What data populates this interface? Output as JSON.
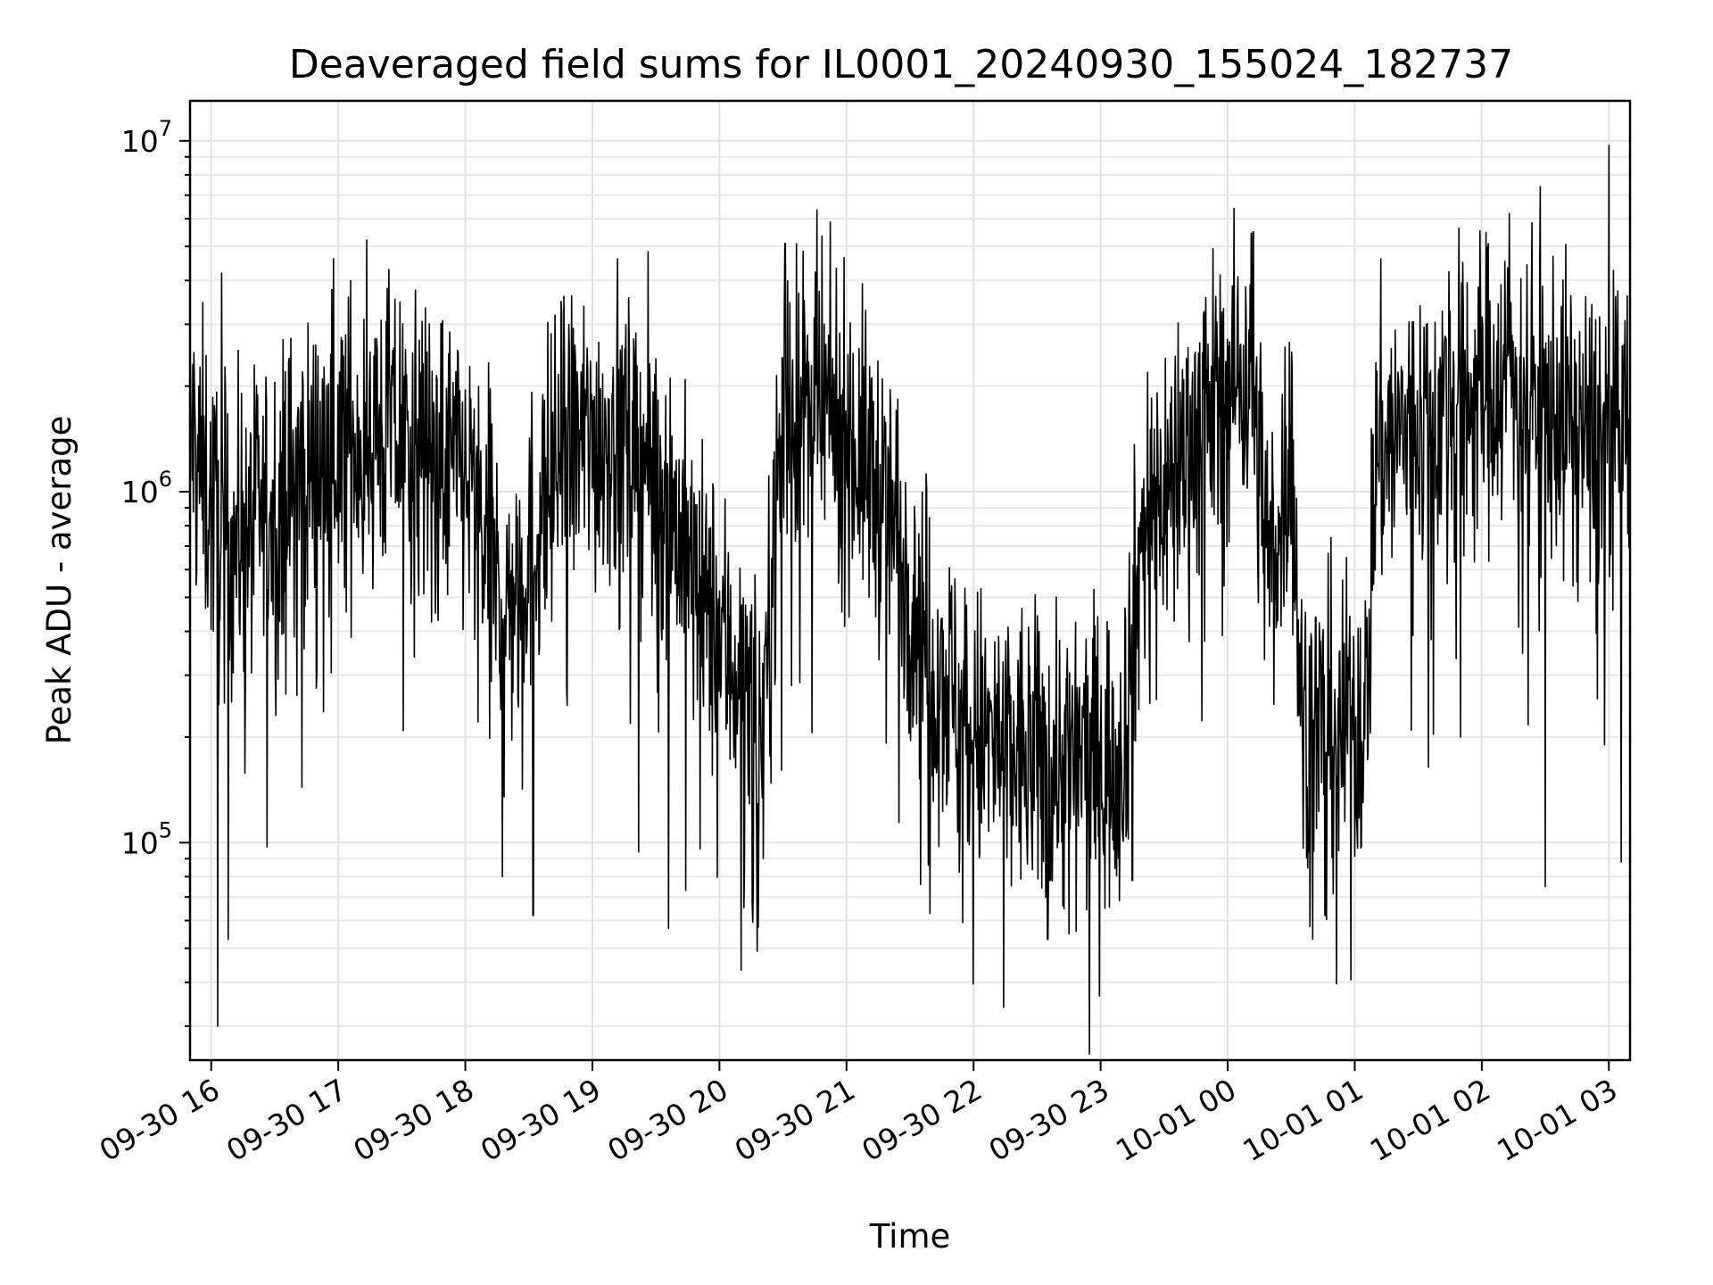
{
  "chart_data": {
    "type": "line",
    "title": "Deaveraged field sums for IL0001_20240930_155024_182737",
    "xlabel": "Time",
    "ylabel": "Peak ADU - average",
    "yscale": "log",
    "ylim": [
      24000,
      13000000
    ],
    "xlim": [
      "2024-09-30 15:50",
      "2024-10-01 03:10"
    ],
    "y_ticks": [
      {
        "value": 100000,
        "base": "10",
        "exp": "5"
      },
      {
        "value": 1000000,
        "base": "10",
        "exp": "6"
      },
      {
        "value": 10000000,
        "base": "10",
        "exp": "7"
      }
    ],
    "x_ticks": [
      {
        "t": "2024-09-30 16:00",
        "label": "09-30 16"
      },
      {
        "t": "2024-09-30 17:00",
        "label": "09-30 17"
      },
      {
        "t": "2024-09-30 18:00",
        "label": "09-30 18"
      },
      {
        "t": "2024-09-30 19:00",
        "label": "09-30 19"
      },
      {
        "t": "2024-09-30 20:00",
        "label": "09-30 20"
      },
      {
        "t": "2024-09-30 21:00",
        "label": "09-30 21"
      },
      {
        "t": "2024-09-30 22:00",
        "label": "09-30 22"
      },
      {
        "t": "2024-09-30 23:00",
        "label": "09-30 23"
      },
      {
        "t": "2024-10-01 00:00",
        "label": "10-01 00"
      },
      {
        "t": "2024-10-01 01:00",
        "label": "10-01 01"
      },
      {
        "t": "2024-10-01 02:00",
        "label": "10-01 02"
      },
      {
        "t": "2024-10-01 03:00",
        "label": "10-01 03"
      }
    ],
    "grid": true,
    "line_color": "#000000",
    "series": [
      {
        "trend": [
          [
            "2024-09-30 15:50",
            1500000
          ],
          [
            "2024-09-30 16:05",
            700000
          ],
          [
            "2024-09-30 16:30",
            900000
          ],
          [
            "2024-09-30 17:00",
            1400000
          ],
          [
            "2024-09-30 17:30",
            1500000
          ],
          [
            "2024-09-30 18:00",
            1100000
          ],
          [
            "2024-09-30 18:20",
            450000
          ],
          [
            "2024-09-30 18:45",
            1300000
          ],
          [
            "2024-09-30 19:15",
            1500000
          ],
          [
            "2024-09-30 19:35",
            1000000
          ],
          [
            "2024-09-30 19:50",
            500000
          ],
          [
            "2024-09-30 20:10",
            300000
          ],
          [
            "2024-09-30 20:20",
            200000
          ],
          [
            "2024-09-30 20:30",
            1800000
          ],
          [
            "2024-09-30 21:00",
            1500000
          ],
          [
            "2024-09-30 21:20",
            900000
          ],
          [
            "2024-09-30 21:40",
            350000
          ],
          [
            "2024-09-30 22:00",
            200000
          ],
          [
            "2024-09-30 22:30",
            170000
          ],
          [
            "2024-09-30 23:10",
            180000
          ],
          [
            "2024-09-30 23:20",
            800000
          ],
          [
            "2024-09-30 23:45",
            1500000
          ],
          [
            "2024-10-01 00:10",
            2300000
          ],
          [
            "2024-10-01 00:20",
            600000
          ],
          [
            "2024-10-01 00:30",
            1400000
          ],
          [
            "2024-10-01 00:35",
            220000
          ],
          [
            "2024-10-01 01:05",
            220000
          ],
          [
            "2024-10-01 01:10",
            1300000
          ],
          [
            "2024-10-01 01:45",
            1800000
          ],
          [
            "2024-10-01 02:15",
            2200000
          ],
          [
            "2024-10-01 02:45",
            1500000
          ],
          [
            "2024-10-01 03:10",
            1400000
          ]
        ],
        "spikes": [
          [
            "2024-09-30 16:03",
            30000
          ],
          [
            "2024-09-30 16:05",
            4200000
          ],
          [
            "2024-09-30 16:08",
            53000
          ],
          [
            "2024-09-30 18:32",
            62000
          ],
          [
            "2024-09-30 19:36",
            57000
          ],
          [
            "2024-09-30 20:31",
            5100000
          ],
          [
            "2024-09-30 21:35",
            76000
          ],
          [
            "2024-09-30 22:35",
            53000
          ],
          [
            "2024-09-30 22:45",
            55000
          ],
          [
            "2024-09-30 23:02",
            65000
          ],
          [
            "2024-09-30 23:15",
            78000
          ],
          [
            "2024-10-01 00:12",
            5500000
          ],
          [
            "2024-10-01 00:46",
            62000
          ],
          [
            "2024-10-01 02:13",
            6200000
          ],
          [
            "2024-10-01 02:30",
            75000
          ],
          [
            "2024-10-01 02:58",
            190000
          ],
          [
            "2024-10-01 03:00",
            9700000
          ]
        ]
      }
    ]
  }
}
